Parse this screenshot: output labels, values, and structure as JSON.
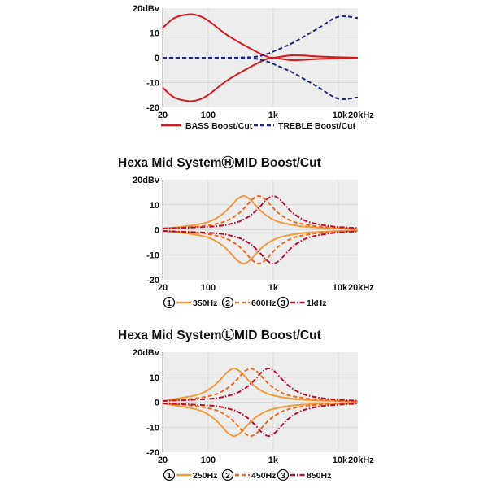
{
  "chart_data": [
    {
      "type": "line",
      "title": "",
      "x_scale": "log",
      "xlim": [
        20,
        20000
      ],
      "ylim": [
        -20,
        20
      ],
      "x_tick_labels": [
        "20",
        "100",
        "1k",
        "10k",
        "20kHz"
      ],
      "x_tick_values": [
        20,
        100,
        1000,
        10000,
        20000
      ],
      "y_tick_labels": [
        "20dBv",
        "10",
        "0",
        "-10",
        "-20"
      ],
      "y_tick_values": [
        20,
        10,
        0,
        -10,
        -20
      ],
      "grid": true,
      "legend_placement": "bottom",
      "series": [
        {
          "name": "BASS Boost/Cut",
          "color": "#d71920",
          "style": "solid",
          "x": [
            20,
            30,
            50,
            70,
            100,
            200,
            500,
            800,
            1000,
            2000,
            5000,
            10000,
            20000
          ],
          "y_boost": [
            12,
            16,
            17.5,
            17,
            15,
            9,
            3,
            0.5,
            0,
            1,
            0.5,
            0.2,
            0
          ],
          "y_cut": [
            -12,
            -16,
            -17.5,
            -17,
            -15,
            -9,
            -3,
            -0.5,
            0,
            -1,
            -0.5,
            -0.2,
            0
          ]
        },
        {
          "name": "TREBLE Boost/Cut",
          "color": "#1c2a80",
          "style": "dashed",
          "x": [
            20,
            30,
            50,
            70,
            100,
            200,
            500,
            800,
            1000,
            2000,
            5000,
            10000,
            20000
          ],
          "y_boost": [
            0,
            0,
            0,
            0,
            0,
            0,
            0.3,
            1.5,
            2.5,
            6,
            12,
            16.5,
            16
          ],
          "y_cut": [
            0,
            0,
            0,
            0,
            0,
            0,
            -0.3,
            -1.5,
            -2.5,
            -6,
            -12,
            -16.5,
            -16
          ]
        }
      ]
    },
    {
      "type": "line",
      "title": "Hexa Mid SystemⒽMID Boost/Cut",
      "x_scale": "log",
      "xlim": [
        20,
        20000
      ],
      "ylim": [
        -20,
        20
      ],
      "x_tick_labels": [
        "20",
        "100",
        "1k",
        "10k",
        "20kHz"
      ],
      "x_tick_values": [
        20,
        100,
        1000,
        10000,
        20000
      ],
      "y_tick_labels": [
        "20dBv",
        "10",
        "0",
        "-10",
        "-20"
      ],
      "y_tick_values": [
        20,
        10,
        0,
        -10,
        -20
      ],
      "grid": true,
      "legend_placement": "bottom",
      "series": [
        {
          "name": "350Hz",
          "number": "1",
          "color": "#f39a3b",
          "style": "solid",
          "x": [
            20,
            44,
            88,
            124,
            175,
            221,
            278,
            350,
            441,
            555,
            698,
            986,
            1393,
            2780,
            6983,
            20000
          ],
          "y_boost": [
            0.5,
            1.35,
            2.7,
            4.15,
            6.75,
            9.35,
            12.15,
            13.5,
            12.15,
            9.35,
            6.75,
            4.15,
            2.7,
            1.35,
            0.68,
            0.3
          ],
          "y_cut": [
            -0.5,
            -1.35,
            -2.7,
            -4.15,
            -6.75,
            -9.35,
            -12.15,
            -13.5,
            -12.15,
            -9.35,
            -6.75,
            -4.15,
            -2.7,
            -1.35,
            -0.68,
            -0.3
          ]
        },
        {
          "name": "600Hz",
          "number": "2",
          "color": "#ec6a1e",
          "style": "dashed",
          "x": [
            20,
            76,
            151,
            213,
            301,
            379,
            476,
            600,
            755,
            951,
            1197,
            1691,
            2389,
            4766,
            11970,
            20000
          ],
          "y_boost": [
            0.5,
            1.35,
            2.7,
            4.15,
            6.75,
            9.35,
            12.15,
            13.5,
            12.15,
            9.35,
            6.75,
            4.15,
            2.7,
            1.35,
            0.68,
            0.3
          ],
          "y_cut": [
            -0.5,
            -1.35,
            -2.7,
            -4.15,
            -6.75,
            -9.35,
            -12.15,
            -13.5,
            -12.15,
            -9.35,
            -6.75,
            -4.15,
            -2.7,
            -1.35,
            -0.68,
            -0.3
          ]
        },
        {
          "name": "1kHz",
          "number": "3",
          "color": "#b5122e",
          "style": "dashdot",
          "x": [
            20,
            126,
            251,
            355,
            501,
            631,
            794,
            1000,
            1259,
            1585,
            1995,
            2818,
            3981,
            7943,
            15000,
            20000
          ],
          "y_boost": [
            0.5,
            1.35,
            2.7,
            4.15,
            6.75,
            9.35,
            12.15,
            13.5,
            12.15,
            9.35,
            6.75,
            4.15,
            2.7,
            1.35,
            0.85,
            0.68
          ],
          "y_cut": [
            -0.5,
            -1.35,
            -2.7,
            -4.15,
            -6.75,
            -9.35,
            -12.15,
            -13.5,
            -12.15,
            -9.35,
            -6.75,
            -4.15,
            -2.7,
            -1.35,
            -0.85,
            -0.68
          ]
        }
      ]
    },
    {
      "type": "line",
      "title": "Hexa Mid SystemⓁMID Boost/Cut",
      "x_scale": "log",
      "xlim": [
        20,
        20000
      ],
      "ylim": [
        -20,
        20
      ],
      "x_tick_labels": [
        "20",
        "100",
        "1k",
        "10k",
        "20kHz"
      ],
      "x_tick_values": [
        20,
        100,
        1000,
        10000,
        20000
      ],
      "y_tick_labels": [
        "20dBv",
        "10",
        "0",
        "-10",
        "-20"
      ],
      "y_tick_values": [
        20,
        10,
        0,
        -10,
        -20
      ],
      "grid": true,
      "legend_placement": "bottom",
      "series": [
        {
          "name": "250Hz",
          "number": "1",
          "color": "#f39a3b",
          "style": "solid",
          "x": [
            20,
            32,
            63,
            89,
            125,
            158,
            199,
            250,
            315,
            396,
            499,
            705,
            995,
            1986,
            4988,
            20000
          ],
          "y_boost": [
            0.5,
            1.35,
            2.7,
            4.15,
            6.75,
            9.35,
            12.15,
            13.5,
            12.15,
            9.35,
            6.75,
            4.15,
            2.7,
            1.35,
            0.68,
            0.3
          ],
          "y_cut": [
            -0.5,
            -1.35,
            -2.7,
            -4.15,
            -6.75,
            -9.35,
            -12.15,
            -13.5,
            -12.15,
            -9.35,
            -6.75,
            -4.15,
            -2.7,
            -1.35,
            -0.68,
            -0.3
          ]
        },
        {
          "name": "450Hz",
          "number": "2",
          "color": "#ec6a1e",
          "style": "dashed",
          "x": [
            20,
            57,
            113,
            160,
            225,
            284,
            357,
            450,
            567,
            713,
            898,
            1268,
            1791,
            3574,
            8978,
            20000
          ],
          "y_boost": [
            0.5,
            1.35,
            2.7,
            4.15,
            6.75,
            9.35,
            12.15,
            13.5,
            12.15,
            9.35,
            6.75,
            4.15,
            2.7,
            1.35,
            0.68,
            0.3
          ],
          "y_cut": [
            -0.5,
            -1.35,
            -2.7,
            -4.15,
            -6.75,
            -9.35,
            -12.15,
            -13.5,
            -12.15,
            -9.35,
            -6.75,
            -4.15,
            -2.7,
            -1.35,
            -0.68,
            -0.3
          ]
        },
        {
          "name": "850Hz",
          "number": "3",
          "color": "#b5122e",
          "style": "dashdot",
          "x": [
            20,
            107,
            213,
            302,
            426,
            536,
            675,
            850,
            1070,
            1347,
            1696,
            2395,
            3384,
            6752,
            16960,
            20000
          ],
          "y_boost": [
            0.5,
            1.35,
            2.7,
            4.15,
            6.75,
            9.35,
            12.15,
            13.5,
            12.15,
            9.35,
            6.75,
            4.15,
            2.7,
            1.35,
            0.68,
            0.6
          ],
          "y_cut": [
            -0.5,
            -1.35,
            -2.7,
            -4.15,
            -6.75,
            -9.35,
            -12.15,
            -13.5,
            -12.15,
            -9.35,
            -6.75,
            -4.15,
            -2.7,
            -1.35,
            -0.68,
            -0.6
          ]
        }
      ]
    }
  ],
  "colors": {
    "plot_background": "#ededed",
    "grid": "#dadada"
  }
}
